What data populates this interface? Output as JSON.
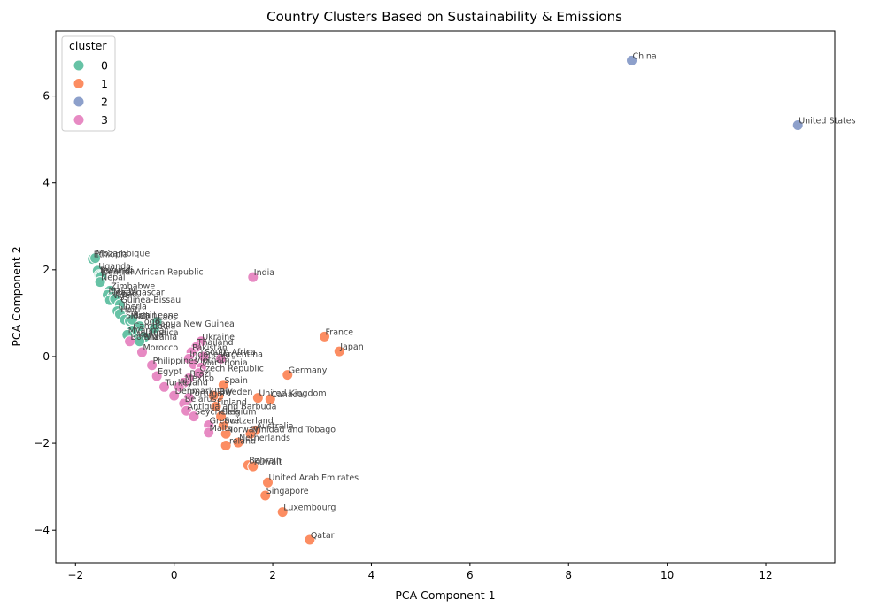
{
  "chart_data": {
    "type": "scatter",
    "title": "Country Clusters Based on Sustainability & Emissions",
    "xlabel": "PCA Component 1",
    "ylabel": "PCA Component 2",
    "xlim": [
      -2.4,
      13.4
    ],
    "ylim": [
      -4.75,
      7.5
    ],
    "xticks": [
      -2,
      0,
      2,
      4,
      6,
      8,
      10,
      12
    ],
    "yticks": [
      -4,
      -2,
      0,
      2,
      4,
      6
    ],
    "xtick_labels": [
      "−2",
      "0",
      "2",
      "4",
      "6",
      "8",
      "10",
      "12"
    ],
    "ytick_labels": [
      "−4",
      "−2",
      "0",
      "2",
      "4",
      "6"
    ],
    "grid": false,
    "legend": {
      "title": "cluster",
      "placement": "top-left"
    },
    "series": [
      {
        "name": "0",
        "color": "#66c2a5",
        "points": [
          {
            "x": -1.65,
            "y": 2.25,
            "label": "Ethiopia"
          },
          {
            "x": -1.6,
            "y": 2.27,
            "label": "Mozambique"
          },
          {
            "x": -1.55,
            "y": 1.98,
            "label": "Uganda"
          },
          {
            "x": -1.52,
            "y": 1.88,
            "label": "Burundi"
          },
          {
            "x": -1.5,
            "y": 1.86,
            "label": "Rwanda"
          },
          {
            "x": -1.48,
            "y": 1.84,
            "label": "Central African Republic"
          },
          {
            "x": -1.5,
            "y": 1.72,
            "label": "Nepal"
          },
          {
            "x": -1.3,
            "y": 1.52,
            "label": "Zimbabwe"
          },
          {
            "x": -1.35,
            "y": 1.42,
            "label": "Malawi"
          },
          {
            "x": -1.25,
            "y": 1.38,
            "label": "Madagascar"
          },
          {
            "x": -1.3,
            "y": 1.3,
            "label": "Niger"
          },
          {
            "x": -1.2,
            "y": 1.33,
            "label": "Chad"
          },
          {
            "x": -1.1,
            "y": 1.2,
            "label": "Guinea-Bissau"
          },
          {
            "x": -1.15,
            "y": 1.05,
            "label": "Liberia"
          },
          {
            "x": -1.1,
            "y": 0.98,
            "label": "Haiti"
          },
          {
            "x": -1.0,
            "y": 0.85,
            "label": "Sierra Leone"
          },
          {
            "x": -0.9,
            "y": 0.82,
            "label": "Mali"
          },
          {
            "x": -0.85,
            "y": 0.85,
            "label": "Benin"
          },
          {
            "x": -0.35,
            "y": 0.8,
            "label": "Laos"
          },
          {
            "x": -0.7,
            "y": 0.7,
            "label": "Togo"
          },
          {
            "x": -0.4,
            "y": 0.65,
            "label": "Papua New Guinea"
          },
          {
            "x": -0.85,
            "y": 0.6,
            "label": "Cambodia"
          },
          {
            "x": -0.95,
            "y": 0.5,
            "label": "Myanmar"
          },
          {
            "x": -0.6,
            "y": 0.45,
            "label": "Jamaica"
          },
          {
            "x": -0.75,
            "y": 0.4,
            "label": "Kenya"
          },
          {
            "x": -0.7,
            "y": 0.35,
            "label": "Tanzania"
          }
        ]
      },
      {
        "name": "1",
        "color": "#fc8d62",
        "points": [
          {
            "x": 3.05,
            "y": 0.46,
            "label": "France"
          },
          {
            "x": 3.35,
            "y": 0.12,
            "label": "Japan"
          },
          {
            "x": 2.3,
            "y": -0.42,
            "label": "Germany"
          },
          {
            "x": 1.7,
            "y": -0.95,
            "label": "United Kingdom"
          },
          {
            "x": 1.95,
            "y": -0.98,
            "label": "Canada"
          },
          {
            "x": 1.65,
            "y": -1.7,
            "label": "Australia"
          },
          {
            "x": 1.55,
            "y": -1.78,
            "label": "Trinidad and Tobago"
          },
          {
            "x": 1.3,
            "y": -1.98,
            "label": "Netherlands"
          },
          {
            "x": 1.05,
            "y": -1.78,
            "label": "Norway"
          },
          {
            "x": 1.0,
            "y": -1.58,
            "label": "Switzerland"
          },
          {
            "x": 0.95,
            "y": -1.38,
            "label": "Belgium"
          },
          {
            "x": 1.05,
            "y": -2.05,
            "label": "Ireland"
          },
          {
            "x": 0.85,
            "y": -1.15,
            "label": "Finland"
          },
          {
            "x": 0.9,
            "y": -0.92,
            "label": "Sweden"
          },
          {
            "x": 1.0,
            "y": -0.65,
            "label": "Spain"
          },
          {
            "x": 0.8,
            "y": -0.9,
            "label": "Italy"
          },
          {
            "x": 1.5,
            "y": -2.5,
            "label": "Bahrain"
          },
          {
            "x": 1.6,
            "y": -2.53,
            "label": "Kuwait"
          },
          {
            "x": 1.9,
            "y": -2.9,
            "label": "United Arab Emirates"
          },
          {
            "x": 1.85,
            "y": -3.2,
            "label": "Singapore"
          },
          {
            "x": 2.2,
            "y": -3.58,
            "label": "Luxembourg"
          },
          {
            "x": 2.75,
            "y": -4.22,
            "label": "Qatar"
          }
        ]
      },
      {
        "name": "2",
        "color": "#8da0cb",
        "points": [
          {
            "x": 9.28,
            "y": 6.82,
            "label": "China"
          },
          {
            "x": 12.65,
            "y": 5.33,
            "label": "United States"
          }
        ]
      },
      {
        "name": "3",
        "color": "#e78ac3",
        "points": [
          {
            "x": 1.6,
            "y": 1.83,
            "label": "India"
          },
          {
            "x": 0.55,
            "y": 0.35,
            "label": "Ukraine"
          },
          {
            "x": 0.45,
            "y": 0.22,
            "label": "Thailand"
          },
          {
            "x": 0.35,
            "y": 0.1,
            "label": "Pakistan"
          },
          {
            "x": 0.6,
            "y": 0.0,
            "label": "South Africa"
          },
          {
            "x": 0.3,
            "y": -0.05,
            "label": "Indonesia"
          },
          {
            "x": 0.4,
            "y": -0.18,
            "label": "Vietnam"
          },
          {
            "x": 0.55,
            "y": -0.25,
            "label": "Macedonia"
          },
          {
            "x": 0.5,
            "y": -0.38,
            "label": "Czech Republic"
          },
          {
            "x": 0.3,
            "y": -0.5,
            "label": "Brazil"
          },
          {
            "x": 0.2,
            "y": -0.6,
            "label": "Mexico"
          },
          {
            "x": 0.1,
            "y": -0.7,
            "label": "Poland"
          },
          {
            "x": 0.0,
            "y": -0.9,
            "label": "Denmark"
          },
          {
            "x": 0.3,
            "y": -0.95,
            "label": "Portugal"
          },
          {
            "x": 0.2,
            "y": -1.08,
            "label": "Belarus"
          },
          {
            "x": 0.25,
            "y": -1.25,
            "label": "Antigua and Barbuda"
          },
          {
            "x": 0.4,
            "y": -1.38,
            "label": "Seychelles"
          },
          {
            "x": 0.7,
            "y": -1.58,
            "label": "Greece"
          },
          {
            "x": 0.7,
            "y": -1.75,
            "label": "Malta"
          },
          {
            "x": -0.2,
            "y": -0.7,
            "label": "Turkey"
          },
          {
            "x": -0.35,
            "y": -0.45,
            "label": "Egypt"
          },
          {
            "x": -0.45,
            "y": -0.2,
            "label": "Philippines"
          },
          {
            "x": -0.65,
            "y": 0.1,
            "label": "Morocco"
          },
          {
            "x": -0.9,
            "y": 0.35,
            "label": "Bolivia"
          },
          {
            "x": 0.95,
            "y": -0.05,
            "label": "Argentina"
          }
        ]
      }
    ]
  }
}
